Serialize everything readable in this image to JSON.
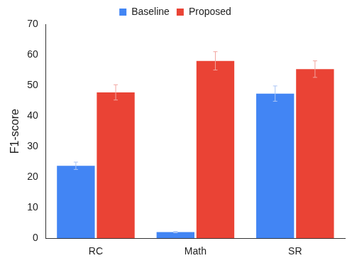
{
  "chart_data": {
    "type": "bar",
    "categories": [
      "RC",
      "Math",
      "SR"
    ],
    "series": [
      {
        "name": "Baseline",
        "color": "#4285f4",
        "values": [
          23.7,
          2.0,
          47.3
        ],
        "errors": [
          1.2,
          0.2,
          2.5
        ]
      },
      {
        "name": "Proposed",
        "color": "#ea4335",
        "values": [
          47.7,
          58.0,
          55.3
        ],
        "errors": [
          2.5,
          3.0,
          2.7
        ]
      }
    ],
    "y_label": "F1-score",
    "ylim": [
      0,
      70
    ],
    "yticks": [
      0,
      10,
      20,
      30,
      40,
      50,
      60,
      70
    ],
    "grid": false,
    "legend": "top"
  }
}
